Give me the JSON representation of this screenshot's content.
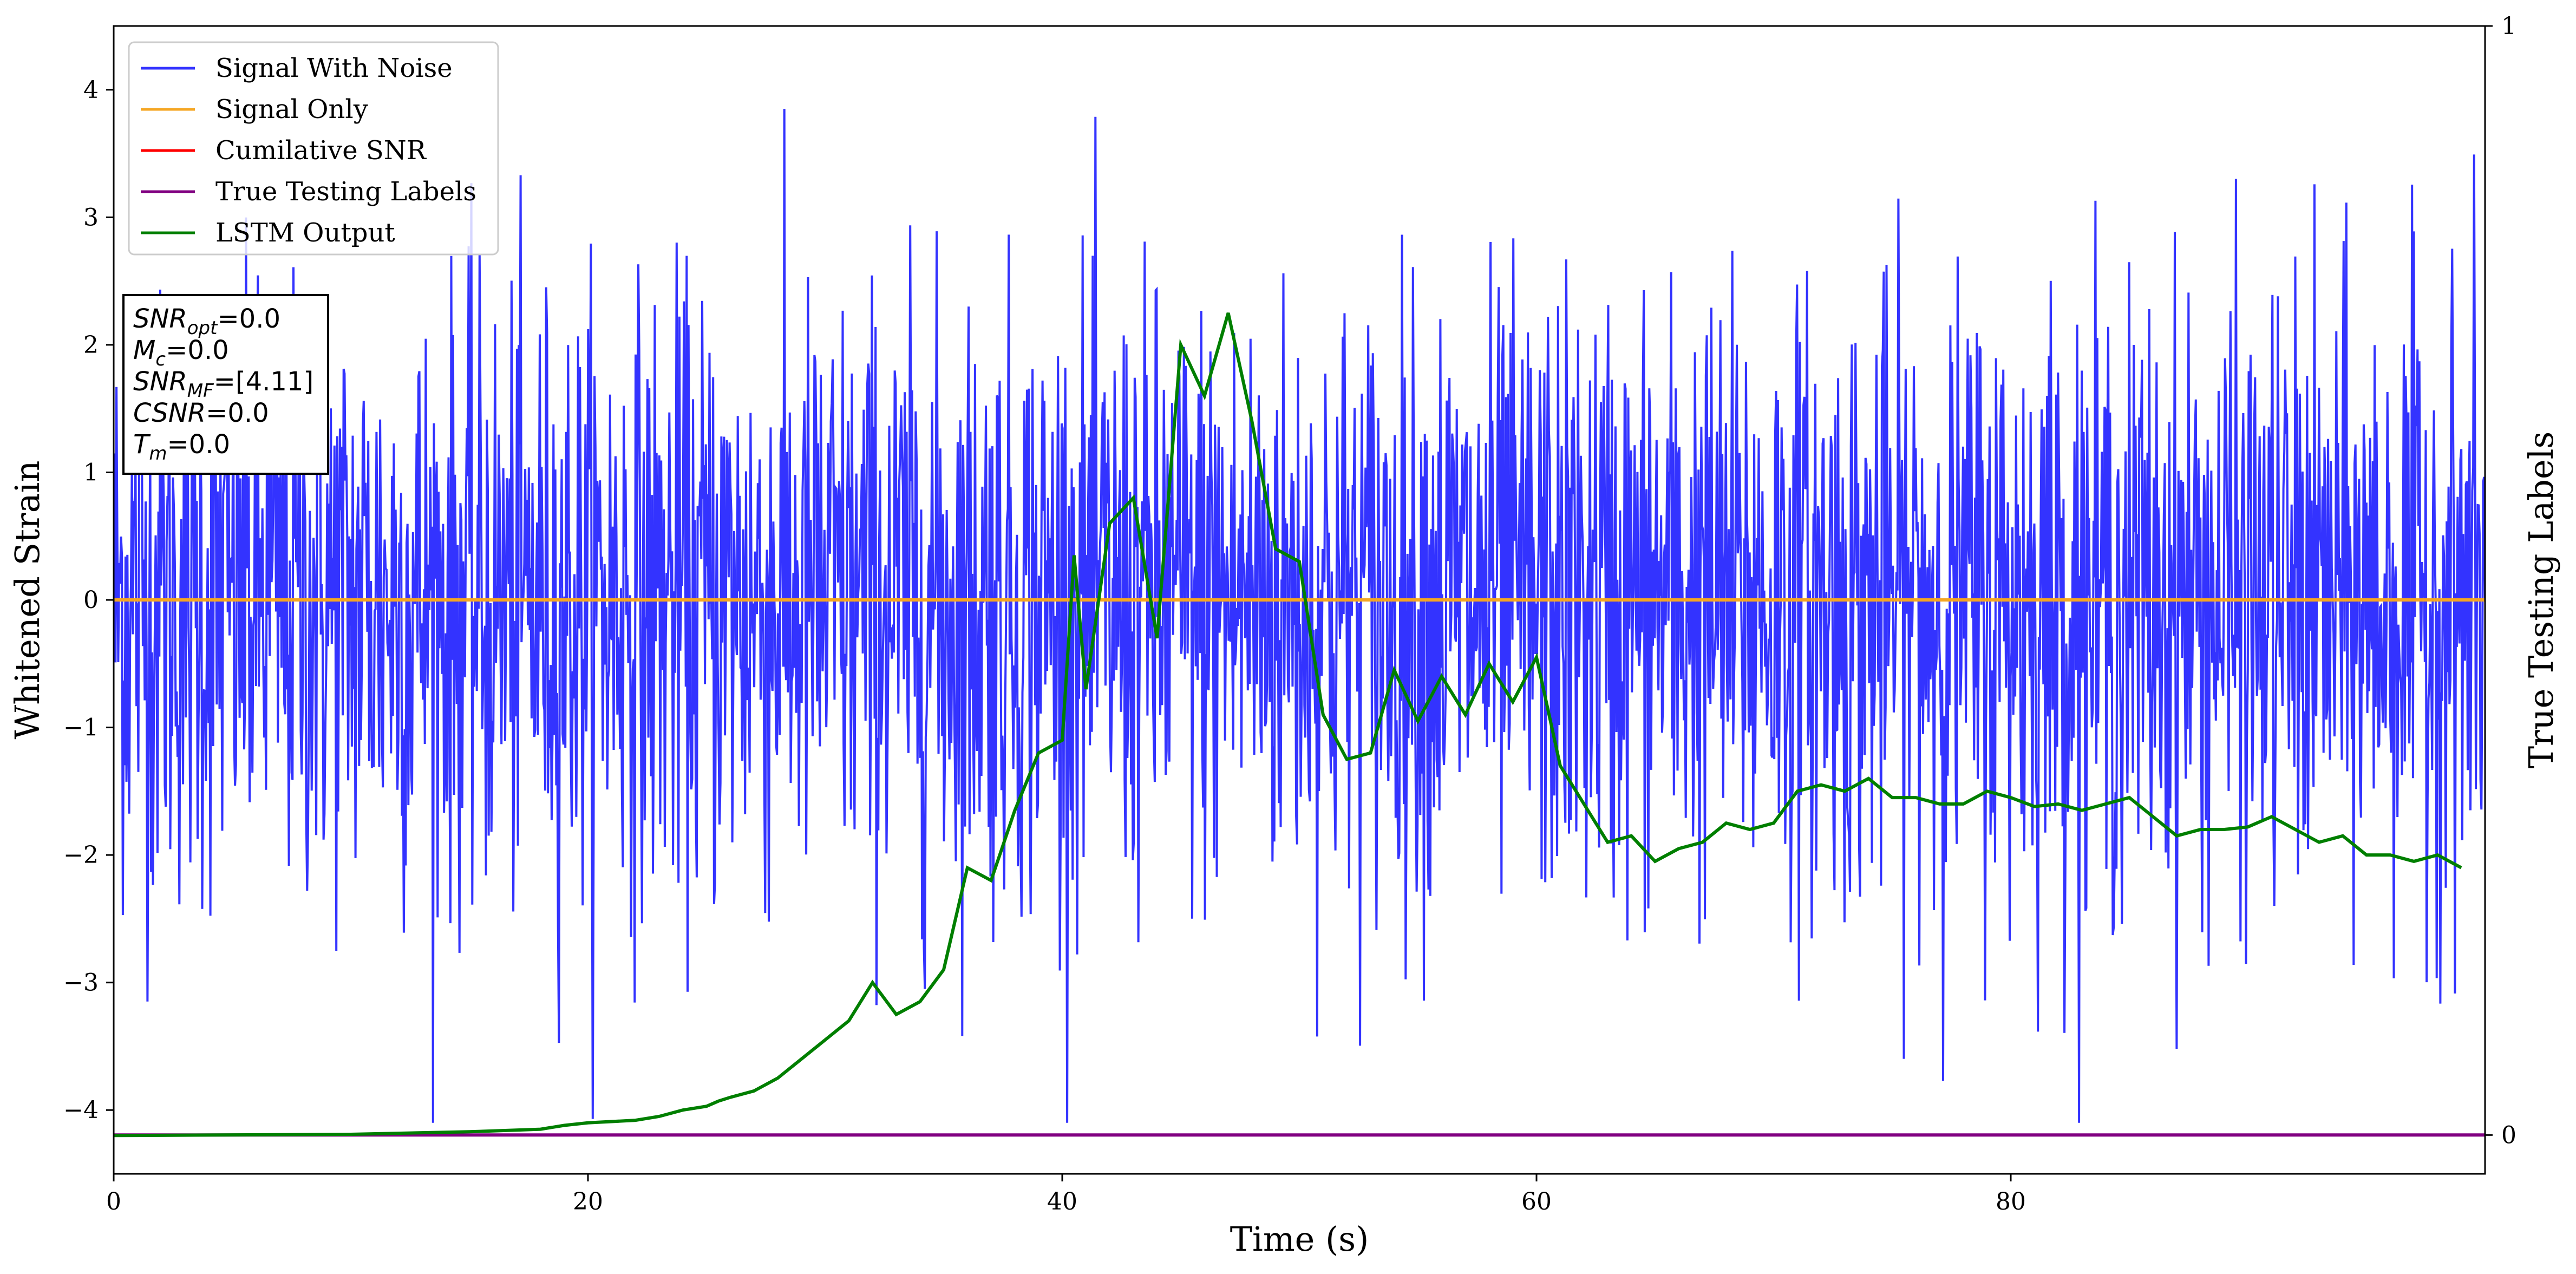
{
  "chart_data": {
    "type": "line",
    "xlabel": "Time (s)",
    "ylabel": "Whitened Strain",
    "y2label": "True Testing Labels",
    "xlim": [
      0,
      100
    ],
    "ylim": [
      -4.5,
      4.5
    ],
    "y2lim": [
      -0.035,
      1.0
    ],
    "x_ticks": [
      0,
      20,
      40,
      60,
      80
    ],
    "y_ticks": [
      -4,
      -3,
      -2,
      -1,
      0,
      1,
      2,
      3,
      4
    ],
    "y2_ticks": [
      0,
      1
    ],
    "x_tick_labels": [
      "0",
      "20",
      "40",
      "60",
      "80"
    ],
    "y_tick_labels": [
      "−4",
      "−3",
      "−2",
      "−1",
      "0",
      "1",
      "2",
      "3",
      "4"
    ],
    "y2_tick_labels": [
      "0",
      "1"
    ],
    "grid": false,
    "legend_position": "top-left",
    "noise": {
      "x_start": 0,
      "x_end": 100,
      "n_points": 2600,
      "envelope_min": -4.1,
      "envelope_max": 3.85,
      "typical_sigma": 1.2
    },
    "series": [
      {
        "name": "Signal With Noise",
        "color": "#3333ff",
        "axis": "left",
        "style": "dense-noise"
      },
      {
        "name": "Signal Only",
        "color": "#f5a623",
        "axis": "left",
        "x": [
          0,
          100
        ],
        "y": [
          0,
          0
        ]
      },
      {
        "name": "Cumilative SNR",
        "color": "#ff0000",
        "axis": "left",
        "x": [],
        "y": []
      },
      {
        "name": "True Testing Labels",
        "color": "#800080",
        "axis": "right",
        "x": [
          0,
          100
        ],
        "y": [
          0,
          0
        ]
      },
      {
        "name": "LSTM Output",
        "color": "#007f00",
        "axis": "left",
        "x": [
          0,
          10,
          15,
          18,
          19,
          20,
          22,
          23,
          24,
          25,
          25.5,
          26,
          27,
          28,
          29,
          30,
          31,
          32,
          33,
          34,
          35,
          36,
          37,
          38,
          39,
          40,
          40.5,
          41,
          42,
          43,
          44,
          45,
          46,
          47,
          48,
          49,
          50,
          51,
          52,
          53,
          54,
          55,
          56,
          57,
          58,
          59,
          60,
          61,
          62,
          63,
          64,
          65,
          66,
          67,
          68,
          69,
          70,
          71,
          72,
          73,
          74,
          75,
          76,
          77,
          78,
          79,
          80,
          81,
          82,
          83,
          84,
          85,
          86,
          87,
          88,
          89,
          90,
          91,
          92,
          93,
          94,
          95,
          96,
          97,
          98,
          99
        ],
        "y": [
          -4.2,
          -4.19,
          -4.17,
          -4.15,
          -4.12,
          -4.1,
          -4.08,
          -4.05,
          -4.0,
          -3.97,
          -3.93,
          -3.9,
          -3.85,
          -3.75,
          -3.6,
          -3.45,
          -3.3,
          -3.0,
          -3.25,
          -3.15,
          -2.9,
          -2.1,
          -2.2,
          -1.65,
          -1.2,
          -1.1,
          0.35,
          -0.7,
          0.6,
          0.8,
          -0.3,
          2.0,
          1.6,
          2.25,
          1.4,
          0.4,
          0.3,
          -0.9,
          -1.25,
          -1.2,
          -0.55,
          -0.95,
          -0.6,
          -0.9,
          -0.5,
          -0.8,
          -0.45,
          -1.3,
          -1.6,
          -1.9,
          -1.85,
          -2.05,
          -1.95,
          -1.9,
          -1.75,
          -1.8,
          -1.75,
          -1.5,
          -1.45,
          -1.5,
          -1.4,
          -1.55,
          -1.55,
          -1.6,
          -1.6,
          -1.5,
          -1.55,
          -1.62,
          -1.6,
          -1.65,
          -1.6,
          -1.55,
          -1.7,
          -1.85,
          -1.8,
          -1.8,
          -1.78,
          -1.7,
          -1.8,
          -1.9,
          -1.85,
          -2.0,
          -2.0,
          -2.05,
          -2.0,
          -2.1
        ]
      }
    ]
  },
  "legend": {
    "items": [
      {
        "label": "Signal With Noise",
        "color": "#3333ff"
      },
      {
        "label": "Signal Only",
        "color": "#f5a623"
      },
      {
        "label": "Cumilative SNR",
        "color": "#ff0000"
      },
      {
        "label": "True Testing Labels",
        "color": "#800080"
      },
      {
        "label": "LSTM Output",
        "color": "#007f00"
      }
    ]
  },
  "info_box": {
    "lines": [
      {
        "var": "SNR",
        "sub": "opt",
        "value": "=0.0"
      },
      {
        "var": "M",
        "sub": "c",
        "value": "=0.0"
      },
      {
        "var": "SNR",
        "sub": "MF",
        "value": "=[4.11]"
      },
      {
        "var": "CSNR",
        "sub": "",
        "value": "=0.0"
      },
      {
        "var": "T",
        "sub": "m",
        "value": "=0.0"
      }
    ]
  }
}
